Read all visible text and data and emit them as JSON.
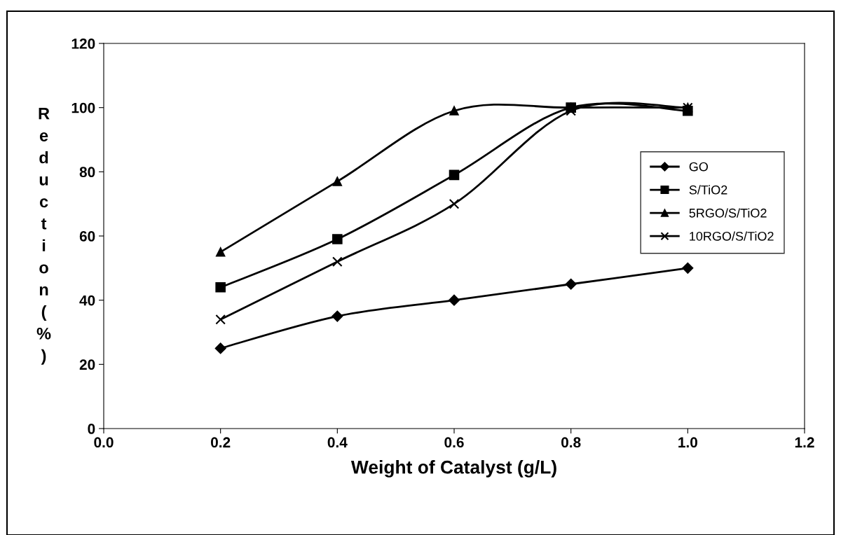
{
  "chart_data": {
    "type": "line",
    "xlabel": "Weight of Catalyst (g/L)",
    "ylabel": "Reduction (%)",
    "x": [
      0.2,
      0.4,
      0.6,
      0.8,
      1.0
    ],
    "series": [
      {
        "name": "GO",
        "color": "#000000",
        "marker": "diamond",
        "values": [
          25,
          35,
          40,
          45,
          50
        ]
      },
      {
        "name": "S/TiO2",
        "color": "#000000",
        "marker": "square",
        "values": [
          44,
          59,
          79,
          100,
          99
        ]
      },
      {
        "name": "5RGO/S/TiO2",
        "color": "#000000",
        "marker": "triangle",
        "values": [
          55,
          77,
          99,
          100,
          100
        ]
      },
      {
        "name": "10RGO/S/TiO2",
        "color": "#000000",
        "marker": "cross",
        "values": [
          34,
          52,
          70,
          99,
          100
        ]
      }
    ],
    "xlim": [
      0.0,
      1.2
    ],
    "xticks": [
      {
        "value": 0.0,
        "label": "0.0"
      },
      {
        "value": 0.2,
        "label": "0.2"
      },
      {
        "value": 0.4,
        "label": "0.4"
      },
      {
        "value": 0.6,
        "label": "0.6"
      },
      {
        "value": 0.8,
        "label": "0.8"
      },
      {
        "value": 1.0,
        "label": "1.0"
      },
      {
        "value": 1.2,
        "label": "1.2"
      }
    ],
    "ylim": [
      0,
      120
    ],
    "yticks": [
      0,
      20,
      40,
      60,
      80,
      100,
      120
    ],
    "grid": false,
    "legend": "right",
    "line_style": "solid"
  }
}
